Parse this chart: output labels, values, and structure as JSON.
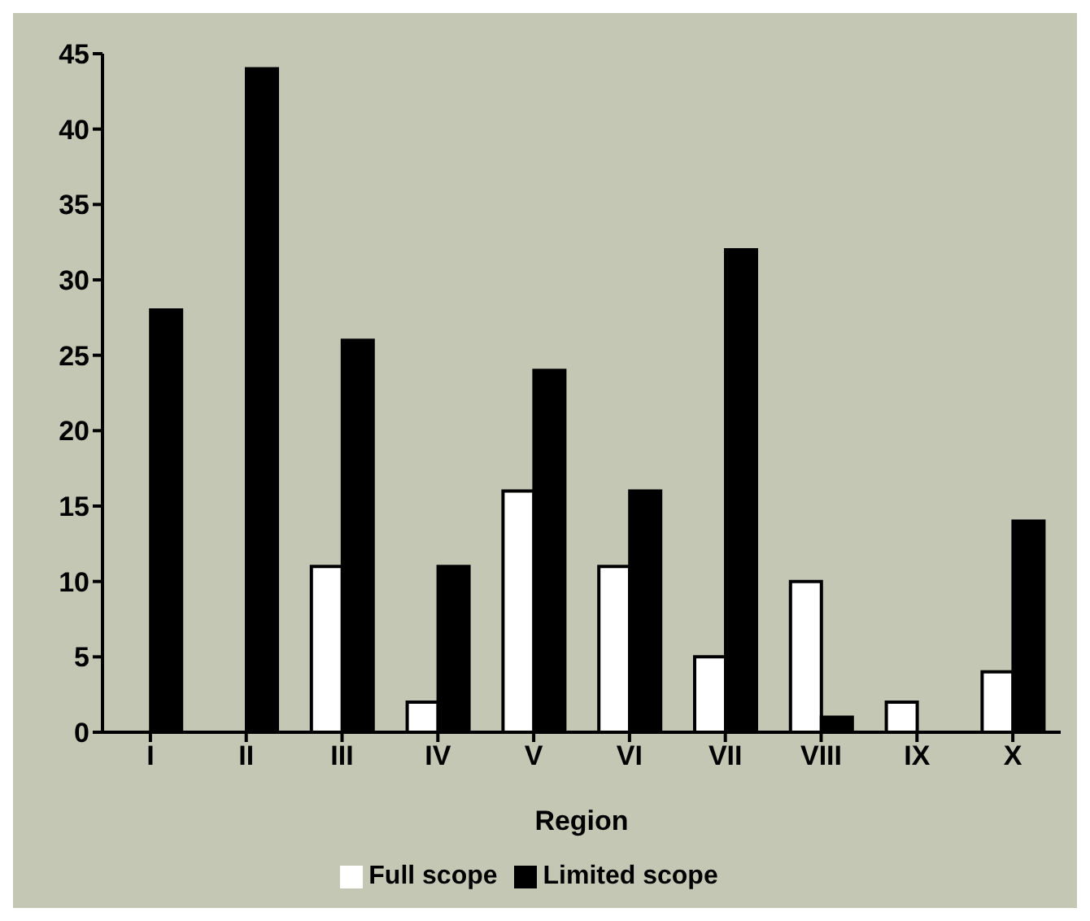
{
  "chart_data": {
    "type": "bar",
    "xlabel": "Region",
    "categories": [
      "I",
      "II",
      "III",
      "IV",
      "V",
      "VI",
      "VII",
      "VIII",
      "IX",
      "X"
    ],
    "series": [
      {
        "name": "Full scope",
        "color": "#ffffff",
        "values": [
          0,
          0,
          11,
          2,
          16,
          11,
          5,
          10,
          2,
          4
        ]
      },
      {
        "name": "Limited scope",
        "color": "#000000",
        "values": [
          28,
          44,
          26,
          11,
          24,
          16,
          32,
          1,
          0,
          14
        ]
      }
    ],
    "ylim": [
      0,
      45
    ],
    "yticks": [
      0,
      5,
      10,
      15,
      20,
      25,
      30,
      35,
      40,
      45
    ],
    "grid": false,
    "legend": "bottom"
  }
}
